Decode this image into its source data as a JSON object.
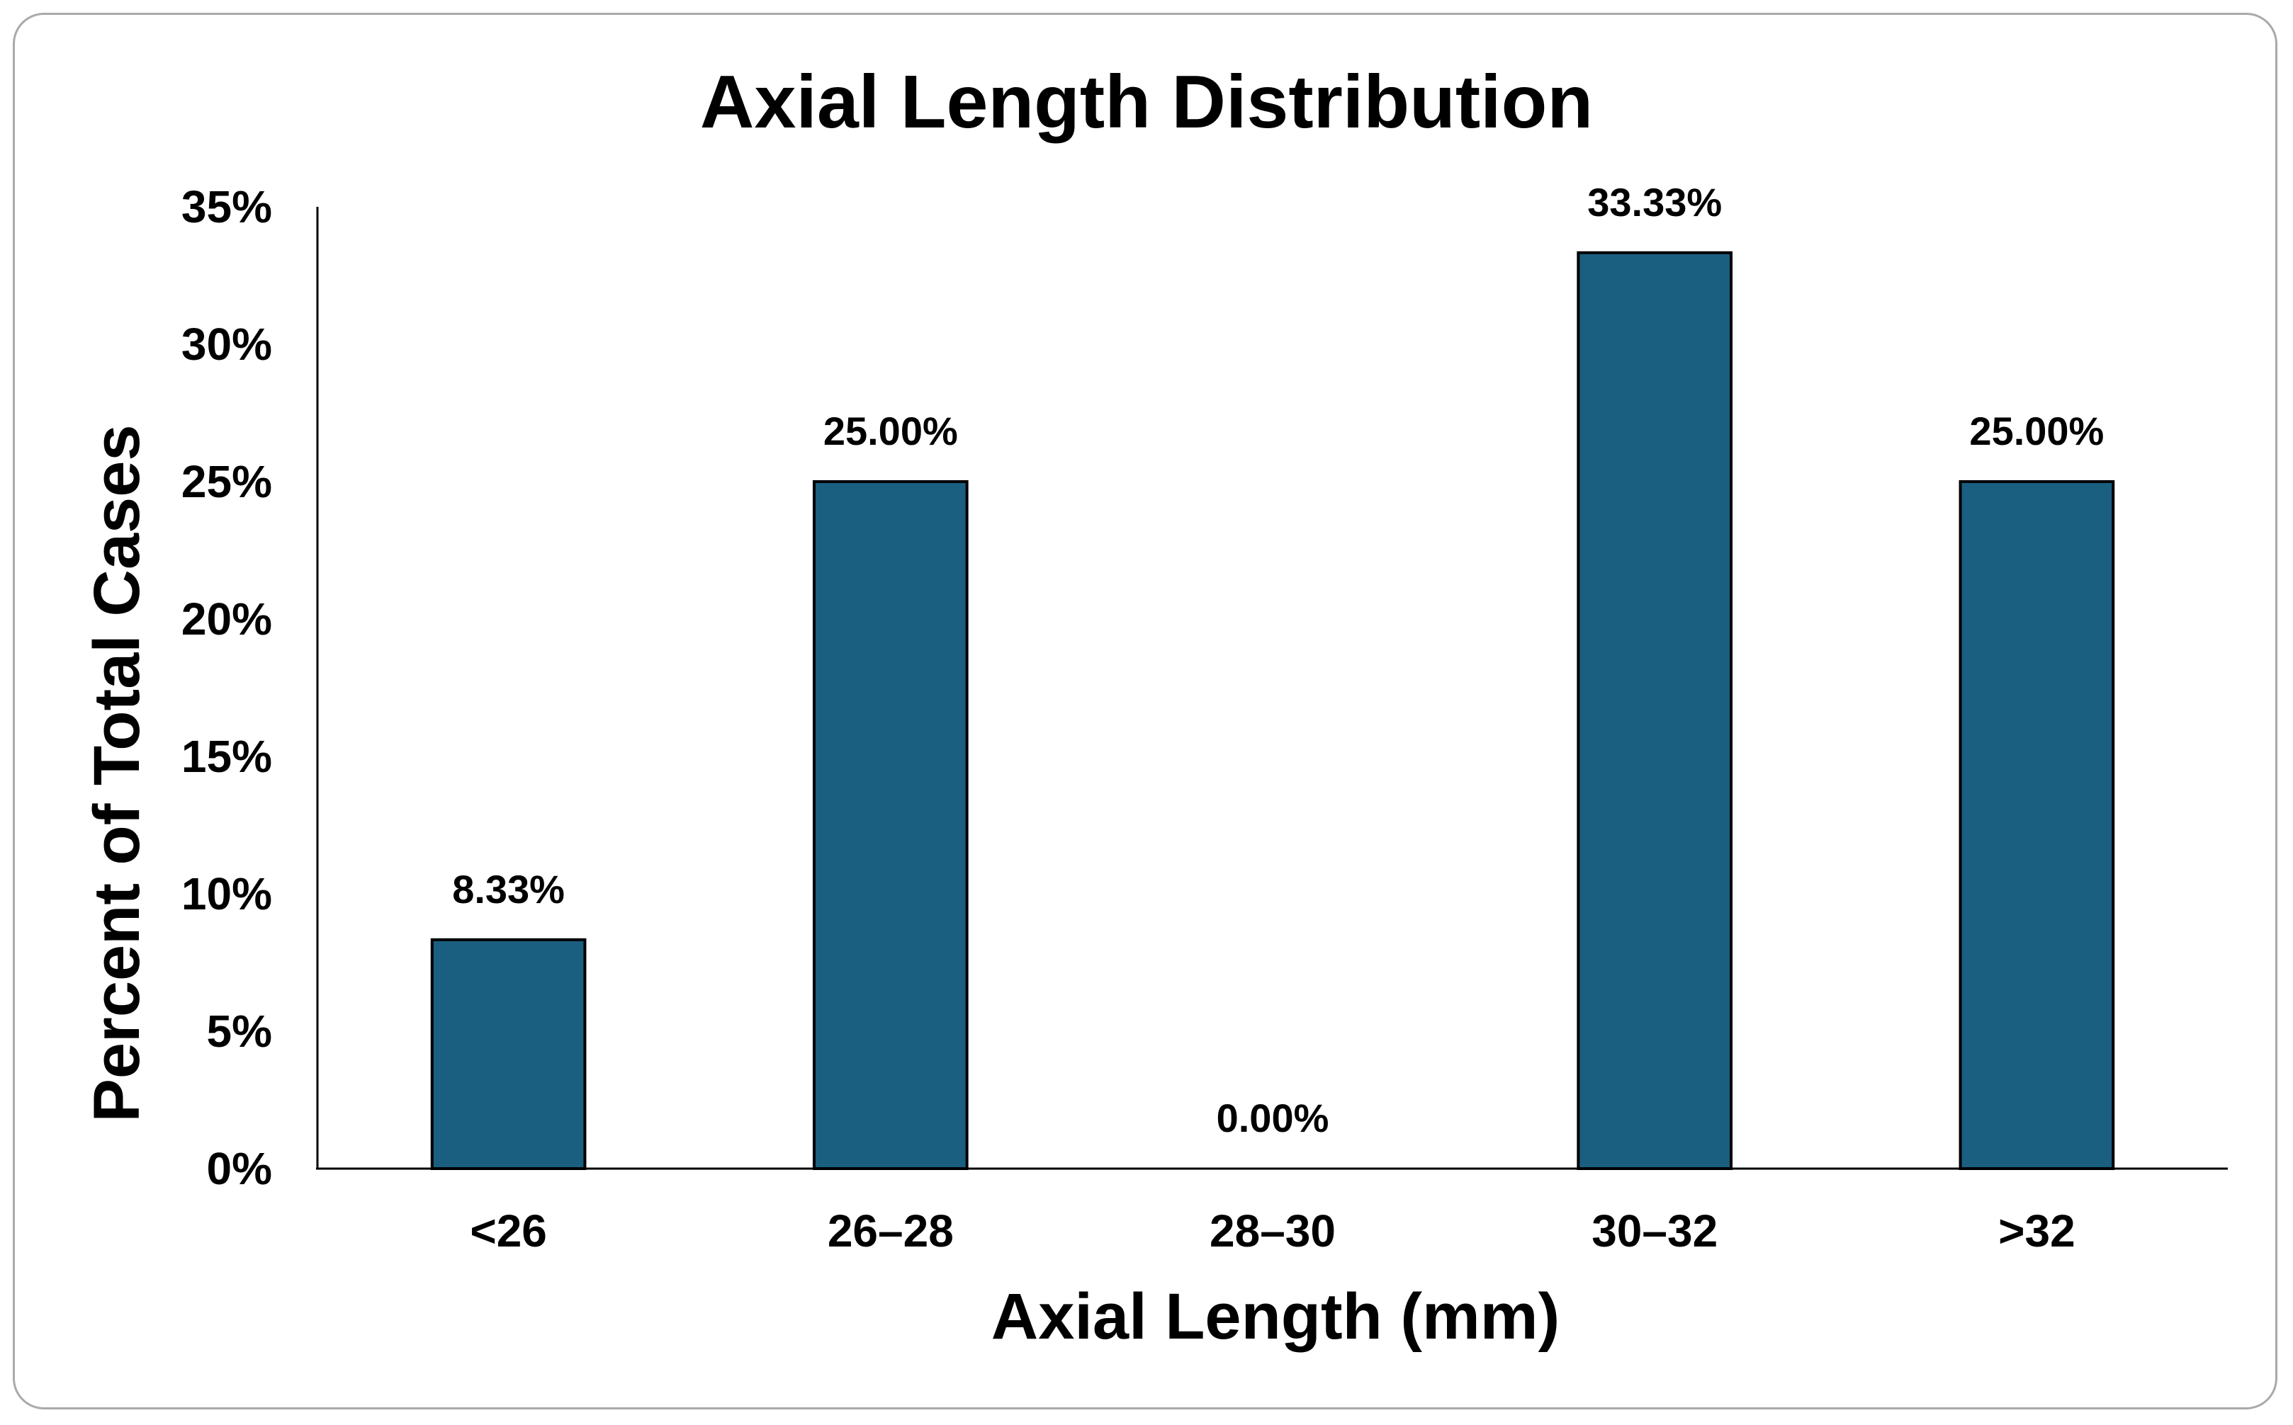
{
  "chart_data": {
    "type": "bar",
    "title": "Axial Length Distribution",
    "xlabel": "Axial Length (mm)",
    "ylabel": "Percent of Total Cases",
    "categories": [
      "<26",
      "26–28",
      "28–30",
      "30–32",
      ">32"
    ],
    "values": [
      8.33,
      25.0,
      0.0,
      33.33,
      25.0
    ],
    "data_labels": [
      "8.33%",
      "25.00%",
      "0.00%",
      "33.33%",
      "25.00%"
    ],
    "ylim": [
      0,
      35
    ],
    "yticks": [
      0,
      5,
      10,
      15,
      20,
      25,
      30,
      35
    ],
    "ytick_labels": [
      "0%",
      "5%",
      "10%",
      "15%",
      "20%",
      "25%",
      "30%",
      "35%"
    ],
    "grid": false,
    "legend": "none",
    "bar_color": "#1a5e80",
    "bar_edge_color": "#000000"
  }
}
